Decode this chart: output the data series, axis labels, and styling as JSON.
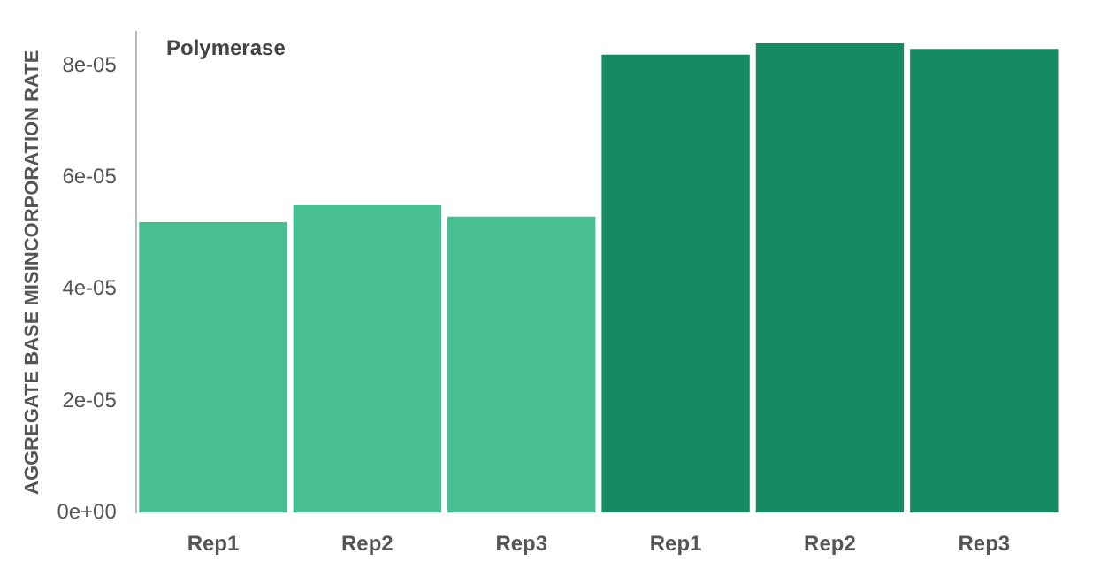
{
  "chart_data": {
    "type": "bar",
    "ylabel": "AGGREGATE BASE MISINCORPORATION RATE",
    "annotations": [
      "Polymerase"
    ],
    "categories": [
      "Rep1",
      "Rep2",
      "Rep3",
      "Rep1",
      "Rep2",
      "Rep3"
    ],
    "values": [
      5.2e-05,
      5.5e-05,
      5.3e-05,
      8.2e-05,
      8.4e-05,
      8.3e-05
    ],
    "colors": [
      "#48bf91",
      "#48bf91",
      "#48bf91",
      "#168a62",
      "#168a62",
      "#168a62"
    ],
    "ylim": [
      0,
      8.6e-05
    ],
    "yticks": [
      {
        "value": 0,
        "label": "0e+00"
      },
      {
        "value": 2e-05,
        "label": "2e-05"
      },
      {
        "value": 4e-05,
        "label": "4e-05"
      },
      {
        "value": 6e-05,
        "label": "6e-05"
      },
      {
        "value": 8e-05,
        "label": "8e-05"
      }
    ]
  }
}
